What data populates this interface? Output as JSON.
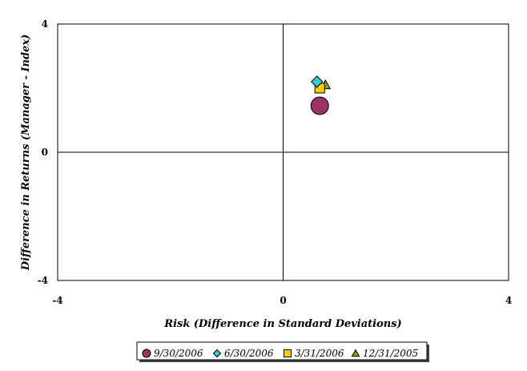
{
  "chart_data": {
    "type": "scatter",
    "title": "",
    "xlabel": "Risk (Difference in Standard Deviations)",
    "ylabel": "Difference in Returns (Manager - Index)",
    "xlim": [
      -4,
      4
    ],
    "ylim": [
      -4,
      4
    ],
    "xticks": [
      "-4",
      "0",
      "4"
    ],
    "yticks": [
      "4",
      "0",
      "-4"
    ],
    "grid": false,
    "legend_position": "bottom",
    "series": [
      {
        "name": "9/30/2006",
        "marker": "circle",
        "color": "#993366",
        "x": [
          0.65
        ],
        "y": [
          1.45
        ]
      },
      {
        "name": "6/30/2006",
        "marker": "diamond",
        "color": "#33cccc",
        "x": [
          0.6
        ],
        "y": [
          2.2
        ]
      },
      {
        "name": "3/31/2006",
        "marker": "square",
        "color": "#ffcc00",
        "x": [
          0.65
        ],
        "y": [
          2.0
        ]
      },
      {
        "name": "12/31/2005",
        "marker": "triangle",
        "color": "#999900",
        "x": [
          0.75
        ],
        "y": [
          2.1
        ]
      }
    ]
  }
}
